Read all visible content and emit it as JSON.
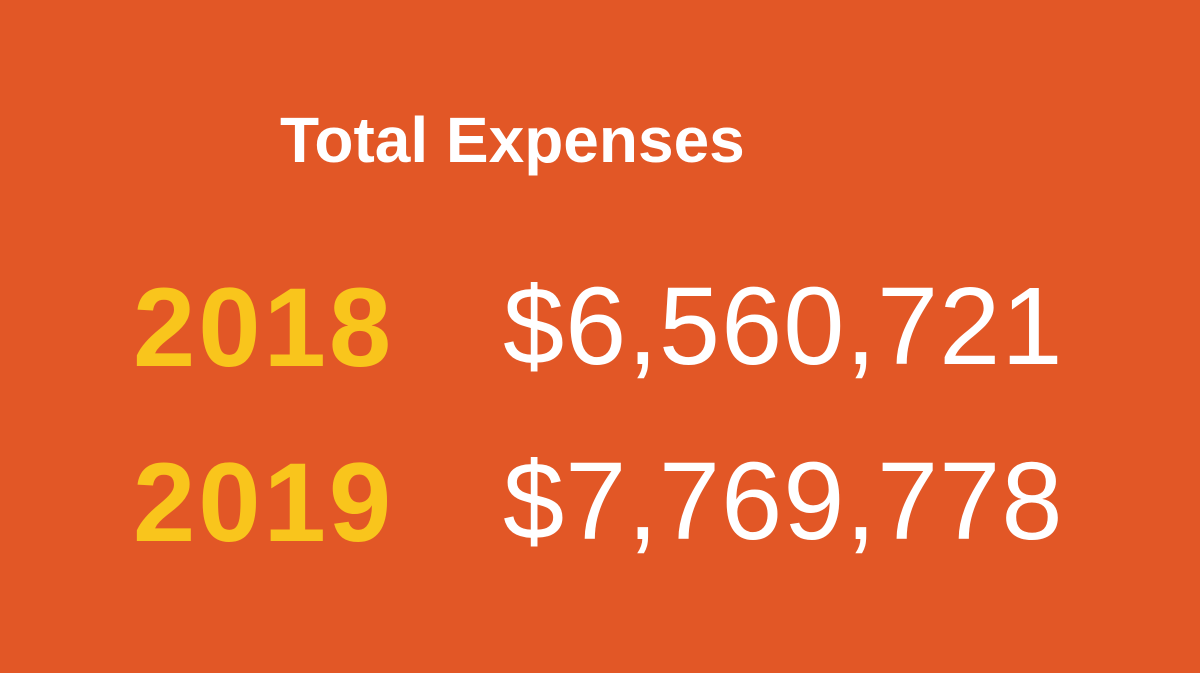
{
  "title": "Total Expenses",
  "rows": [
    {
      "year": "2018",
      "amount": "$6,560,721"
    },
    {
      "year": "2019",
      "amount": "$7,769,778"
    }
  ]
}
